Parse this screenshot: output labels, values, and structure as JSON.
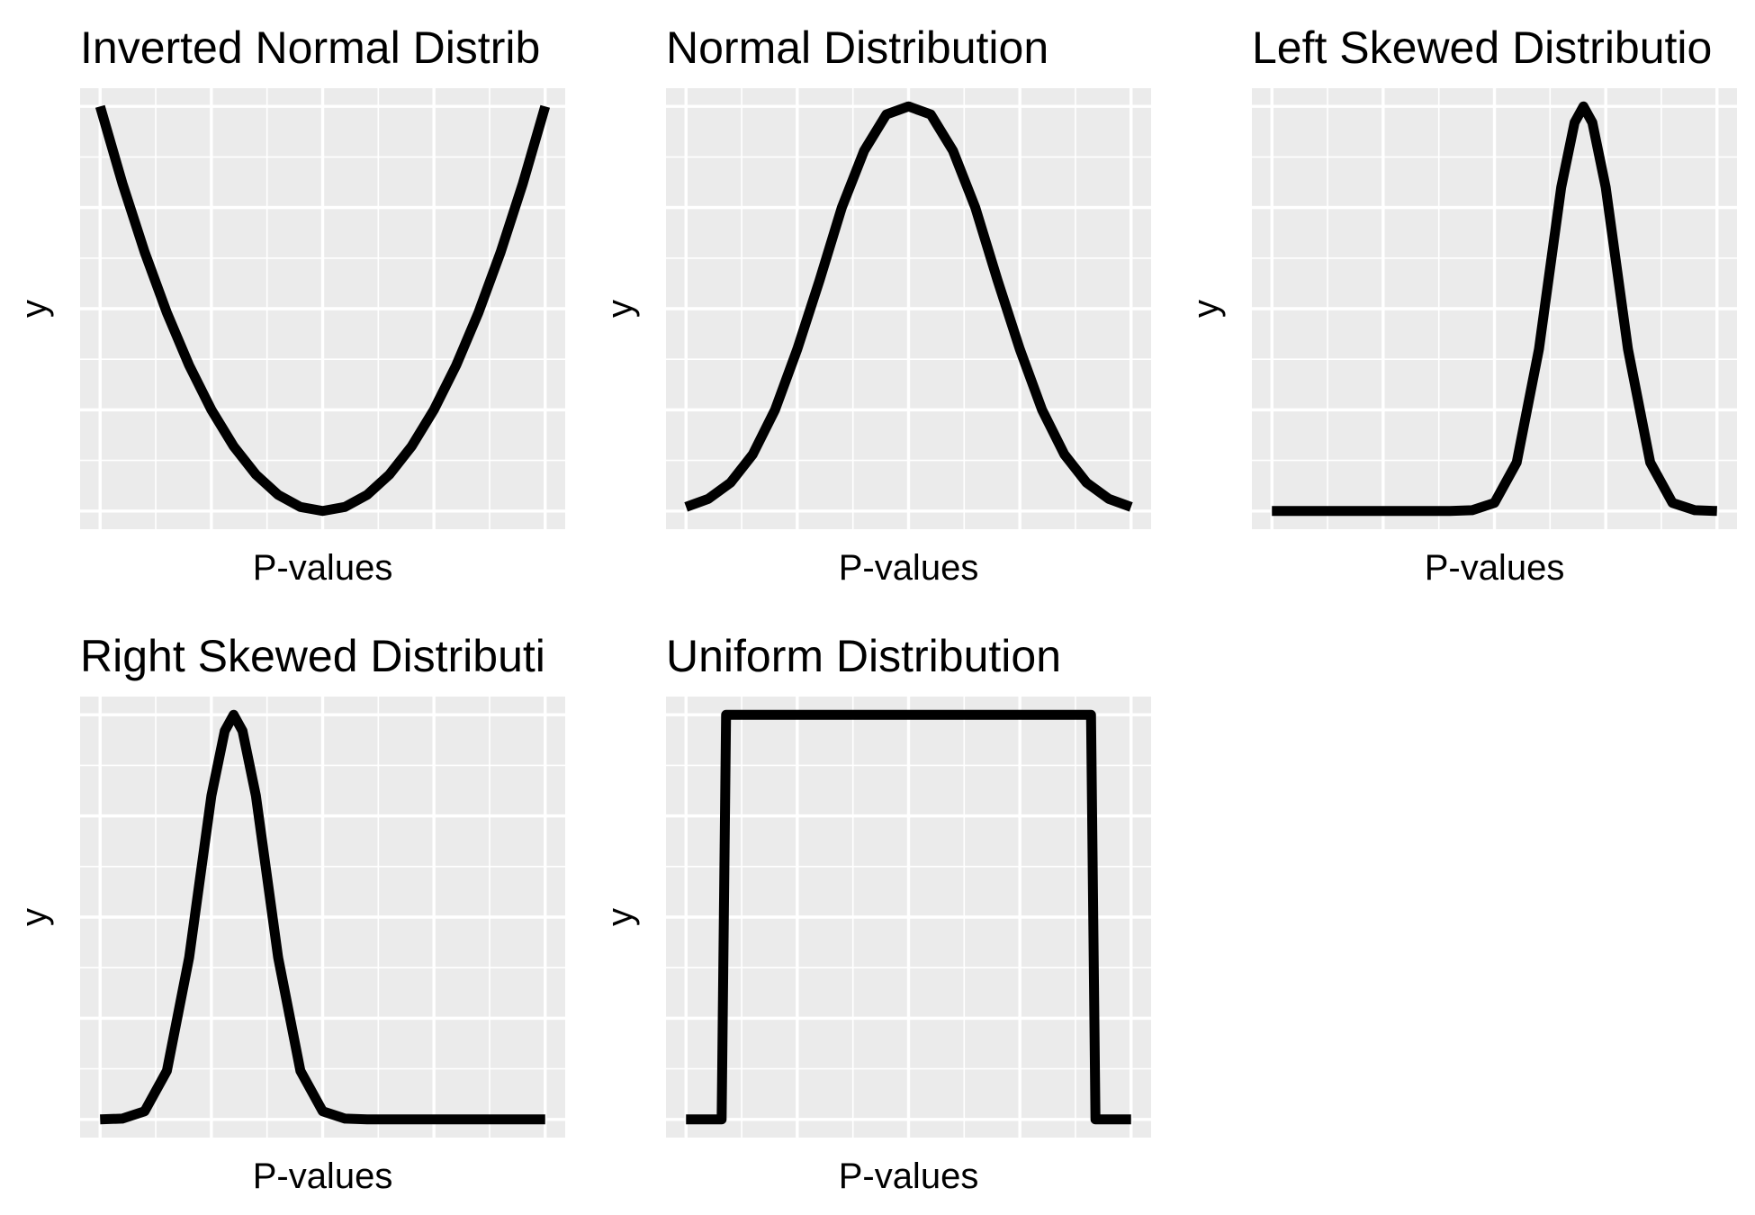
{
  "chart_data": [
    {
      "type": "line",
      "title": "Inverted Normal Distrib",
      "xlabel": "P-values",
      "ylabel": "y",
      "xlim": [
        0,
        1
      ],
      "ylim": [
        0,
        1
      ],
      "x": [
        0,
        0.05,
        0.1,
        0.15,
        0.2,
        0.25,
        0.3,
        0.35,
        0.4,
        0.45,
        0.5,
        0.55,
        0.6,
        0.65,
        0.7,
        0.75,
        0.8,
        0.85,
        0.9,
        0.95,
        1
      ],
      "values": [
        1,
        0.81,
        0.64,
        0.49,
        0.36,
        0.25,
        0.16,
        0.09,
        0.04,
        0.01,
        0,
        0.01,
        0.04,
        0.09,
        0.16,
        0.25,
        0.36,
        0.49,
        0.64,
        0.81,
        1
      ],
      "grid": true
    },
    {
      "type": "line",
      "title": "Normal Distribution",
      "xlabel": "P-values",
      "ylabel": "y",
      "xlim": [
        0,
        1
      ],
      "ylim": [
        0,
        1
      ],
      "x": [
        0,
        0.05,
        0.1,
        0.15,
        0.2,
        0.25,
        0.3,
        0.35,
        0.4,
        0.45,
        0.5,
        0.55,
        0.6,
        0.65,
        0.7,
        0.75,
        0.8,
        0.85,
        0.9,
        0.95,
        1
      ],
      "values": [
        0.01,
        0.03,
        0.07,
        0.14,
        0.25,
        0.4,
        0.57,
        0.75,
        0.89,
        0.98,
        1,
        0.98,
        0.89,
        0.75,
        0.57,
        0.4,
        0.25,
        0.14,
        0.07,
        0.03,
        0.01
      ],
      "grid": true
    },
    {
      "type": "line",
      "title": "Left Skewed Distributio",
      "xlabel": "P-values",
      "ylabel": "y",
      "xlim": [
        0,
        1
      ],
      "ylim": [
        0,
        1
      ],
      "x": [
        0,
        0.1,
        0.2,
        0.3,
        0.4,
        0.45,
        0.5,
        0.55,
        0.6,
        0.65,
        0.68,
        0.7,
        0.72,
        0.75,
        0.8,
        0.85,
        0.9,
        0.95,
        1
      ],
      "values": [
        0,
        0,
        0,
        0,
        0,
        0.002,
        0.02,
        0.12,
        0.4,
        0.8,
        0.96,
        1,
        0.96,
        0.8,
        0.4,
        0.12,
        0.02,
        0.002,
        0
      ],
      "grid": true
    },
    {
      "type": "line",
      "title": "Right Skewed Distributi",
      "xlabel": "P-values",
      "ylabel": "y",
      "xlim": [
        0,
        1
      ],
      "ylim": [
        0,
        1
      ],
      "x": [
        0,
        0.05,
        0.1,
        0.15,
        0.2,
        0.25,
        0.28,
        0.3,
        0.32,
        0.35,
        0.4,
        0.45,
        0.5,
        0.55,
        0.6,
        0.7,
        0.8,
        0.9,
        1
      ],
      "values": [
        0,
        0.002,
        0.02,
        0.12,
        0.4,
        0.8,
        0.96,
        1,
        0.96,
        0.8,
        0.4,
        0.12,
        0.02,
        0.002,
        0,
        0,
        0,
        0,
        0
      ],
      "grid": true
    },
    {
      "type": "line",
      "title": "Uniform Distribution",
      "xlabel": "P-values",
      "ylabel": "y",
      "xlim": [
        0,
        1
      ],
      "ylim": [
        0,
        1
      ],
      "x": [
        0,
        0.08,
        0.09,
        0.91,
        0.92,
        1
      ],
      "values": [
        0,
        0,
        1,
        1,
        0,
        0
      ],
      "grid": true
    }
  ]
}
